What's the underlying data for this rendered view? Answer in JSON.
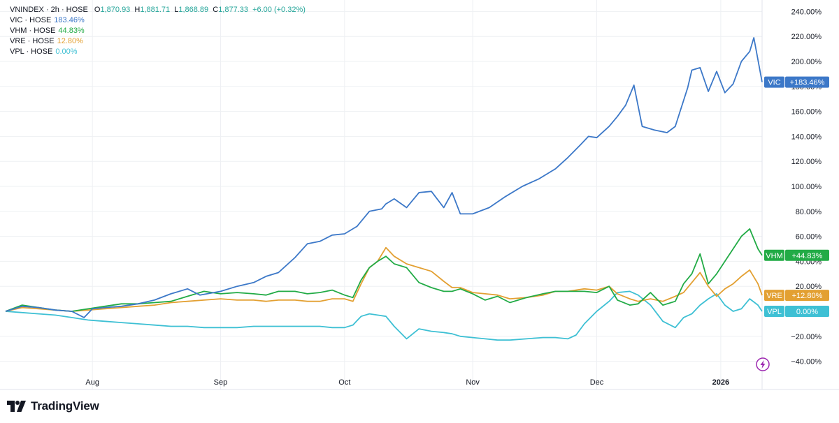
{
  "legend": {
    "main": {
      "name": "VNINDEX · 2h · HOSE",
      "o_label": "O",
      "o": "1,870.93",
      "h_label": "H",
      "h": "1,881.71",
      "l_label": "L",
      "l": "1,868.89",
      "c_label": "C",
      "c": "1,877.33",
      "change": "+6.00 (+0.32%)"
    },
    "rows": [
      {
        "name": "VIC · HOSE",
        "value": "183.46%"
      },
      {
        "name": "VHM · HOSE",
        "value": "44.83%"
      },
      {
        "name": "VRE · HOSE",
        "value": "12.80%"
      },
      {
        "name": "VPL · HOSE",
        "value": "0.00%"
      }
    ]
  },
  "brand": {
    "name": "TradingView"
  },
  "colors": {
    "VIC": "#3c78c8",
    "VHM": "#22ab46",
    "VRE": "#e3a032",
    "VPL": "#3ec0d4",
    "index_up": "#26a69a",
    "grid": "#eef0f3",
    "axis_text": "#131722"
  },
  "chart_data": {
    "type": "line",
    "title": "VNINDEX · 2h · HOSE",
    "x_unit": "days since Jul 9",
    "xlim": [
      0,
      183
    ],
    "ylim": [
      -50,
      250
    ],
    "yticks": [
      240,
      220,
      200,
      180,
      160,
      140,
      120,
      100,
      80,
      60,
      40,
      20,
      -20,
      -40
    ],
    "ytick_labels": [
      "240.00%",
      "220.00%",
      "200.00%",
      "180.00%",
      "160.00%",
      "140.00%",
      "120.00%",
      "100.00%",
      "80.00%",
      "60.00%",
      "40.00%",
      "20.00%",
      "−20.00%",
      "−40.00%"
    ],
    "xticks": [
      21,
      52,
      82,
      113,
      143,
      173
    ],
    "xtick_labels": [
      "Aug",
      "Sep",
      "Oct",
      "Nov",
      "Dec",
      "2026"
    ],
    "grid": true,
    "legend_position": "top-left",
    "series": [
      {
        "name": "VIC",
        "last_label": "VIC",
        "last_value": "+183.46%",
        "x": [
          0,
          4,
          8,
          12,
          16,
          19,
          21,
          24,
          28,
          32,
          36,
          40,
          44,
          47,
          52,
          56,
          60,
          63,
          66,
          70,
          73,
          76,
          79,
          82,
          85,
          88,
          91,
          92,
          94,
          97,
          100,
          103,
          106,
          108,
          110,
          113,
          117,
          121,
          125,
          129,
          133,
          136,
          139,
          141,
          143,
          146,
          148,
          150,
          152,
          154,
          157,
          160,
          162,
          165,
          166,
          168,
          170,
          172,
          174,
          176,
          178,
          180,
          181,
          183
        ],
        "y": [
          0,
          4,
          3,
          1,
          0,
          -5,
          2,
          3,
          4,
          6,
          9,
          14,
          18,
          13,
          16,
          20,
          23,
          28,
          31,
          43,
          54,
          56,
          61,
          62,
          68,
          80,
          82,
          86,
          90,
          83,
          95,
          96,
          83,
          95,
          78,
          78,
          83,
          92,
          100,
          106,
          114,
          123,
          133,
          140,
          139,
          148,
          156,
          165,
          181,
          148,
          145,
          143,
          148,
          179,
          193,
          195,
          176,
          192,
          175,
          182,
          200,
          208,
          219,
          183.46
        ]
      },
      {
        "name": "VHM",
        "last_label": "VHM",
        "last_value": "+44.83%",
        "x": [
          0,
          4,
          8,
          12,
          16,
          20,
          24,
          28,
          32,
          36,
          40,
          44,
          48,
          52,
          56,
          60,
          63,
          66,
          70,
          73,
          76,
          79,
          82,
          84,
          86,
          88,
          90,
          92,
          94,
          97,
          100,
          103,
          106,
          108,
          110,
          113,
          116,
          119,
          122,
          126,
          130,
          133,
          136,
          140,
          143,
          146,
          148,
          151,
          153,
          156,
          159,
          162,
          164,
          166,
          168,
          170,
          172,
          174,
          176,
          178,
          180,
          182,
          183
        ],
        "y": [
          0,
          5,
          3,
          1,
          0,
          2,
          4,
          6,
          6,
          7,
          8,
          12,
          16,
          14,
          15,
          14,
          13,
          16,
          16,
          14,
          15,
          17,
          13,
          11,
          25,
          35,
          40,
          44,
          38,
          35,
          23,
          19,
          16,
          16,
          18,
          14,
          9,
          12,
          7,
          11,
          14,
          16,
          16,
          16,
          15,
          20,
          9,
          5,
          6,
          15,
          5,
          8,
          22,
          30,
          46,
          22,
          30,
          40,
          50,
          60,
          66,
          50,
          44.83
        ]
      },
      {
        "name": "VRE",
        "last_label": "VRE",
        "last_value": "+12.80%",
        "x": [
          0,
          4,
          8,
          12,
          16,
          20,
          24,
          28,
          32,
          36,
          40,
          44,
          48,
          52,
          56,
          60,
          63,
          66,
          70,
          73,
          76,
          79,
          82,
          84,
          86,
          88,
          90,
          92,
          94,
          97,
          100,
          103,
          106,
          108,
          110,
          113,
          116,
          119,
          122,
          126,
          130,
          133,
          136,
          140,
          143,
          146,
          148,
          151,
          153,
          156,
          159,
          162,
          164,
          166,
          168,
          170,
          172,
          174,
          176,
          178,
          180,
          182,
          183
        ],
        "y": [
          0,
          3,
          2,
          1,
          0,
          1,
          2,
          3,
          4,
          5,
          7,
          8,
          9,
          10,
          9,
          9,
          8,
          9,
          9,
          8,
          8,
          10,
          10,
          8,
          22,
          35,
          40,
          51,
          44,
          38,
          35,
          32,
          24,
          19,
          19,
          15,
          14,
          13,
          10,
          11,
          13,
          16,
          16,
          18,
          17,
          20,
          14,
          10,
          8,
          10,
          8,
          12,
          15,
          23,
          31,
          20,
          12,
          18,
          22,
          28,
          33,
          22,
          12.8
        ]
      },
      {
        "name": "VPL",
        "last_label": "VPL",
        "last_value": "0.00%",
        "x": [
          0,
          4,
          8,
          12,
          16,
          20,
          24,
          28,
          32,
          36,
          40,
          44,
          48,
          52,
          56,
          60,
          63,
          66,
          70,
          73,
          76,
          79,
          82,
          84,
          86,
          88,
          90,
          92,
          94,
          97,
          100,
          103,
          106,
          108,
          110,
          113,
          116,
          119,
          122,
          126,
          130,
          133,
          136,
          138,
          140,
          143,
          146,
          148,
          151,
          153,
          156,
          159,
          162,
          164,
          166,
          168,
          170,
          172,
          174,
          176,
          178,
          180,
          182,
          183
        ],
        "y": [
          0,
          -1,
          -2,
          -3,
          -5,
          -7,
          -8,
          -9,
          -10,
          -11,
          -12,
          -12,
          -13,
          -13,
          -13,
          -12,
          -12,
          -12,
          -12,
          -12,
          -12,
          -13,
          -13,
          -11,
          -4,
          -2,
          -3,
          -4,
          -12,
          -22,
          -14,
          -16,
          -17,
          -18,
          -20,
          -21,
          -22,
          -23,
          -23,
          -22,
          -21,
          -21,
          -22,
          -19,
          -10,
          0,
          8,
          15,
          16,
          13,
          5,
          -8,
          -13,
          -5,
          -2,
          5,
          10,
          14,
          5,
          0,
          2,
          10,
          5,
          0
        ]
      }
    ]
  }
}
